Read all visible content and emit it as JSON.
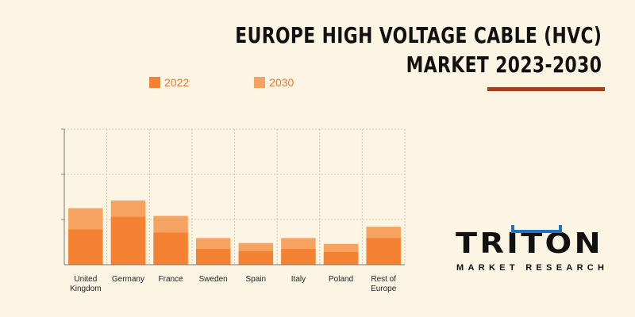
{
  "title": {
    "line1": "EUROPE HIGH VOLTAGE CABLE (HVC)",
    "line2": "MARKET 2023-2030"
  },
  "colors": {
    "background": "#fdf5e4",
    "series_2022": "#f58232",
    "series_2030": "#f6a260",
    "underline": "#a0401e",
    "logo_blue": "#1e73be",
    "logo_text": "#111111",
    "legend_text": "#e07a35"
  },
  "legend": [
    {
      "label": "2022",
      "color": "#f58232"
    },
    {
      "label": "2030",
      "color": "#f6a260"
    }
  ],
  "chart_data": {
    "type": "bar",
    "stacked": true,
    "categories": [
      [
        "United",
        "Kingdom"
      ],
      [
        "Germany"
      ],
      [
        "France"
      ],
      [
        "Sweden"
      ],
      [
        "Spain"
      ],
      [
        "Italy"
      ],
      [
        "Poland"
      ],
      [
        "Rest of",
        "Europe"
      ]
    ],
    "series": [
      {
        "name": "2022",
        "values": [
          0.78,
          1.06,
          0.71,
          0.35,
          0.3,
          0.35,
          0.28,
          0.59
        ]
      },
      {
        "name": "2030",
        "values": [
          1.25,
          1.42,
          1.08,
          0.59,
          0.48,
          0.59,
          0.46,
          0.84
        ]
      }
    ],
    "ylim": [
      0,
      3
    ],
    "grid": true,
    "legend_position": "top"
  },
  "logo": {
    "word": "TRITON",
    "sub": "MARKET RESEARCH"
  }
}
